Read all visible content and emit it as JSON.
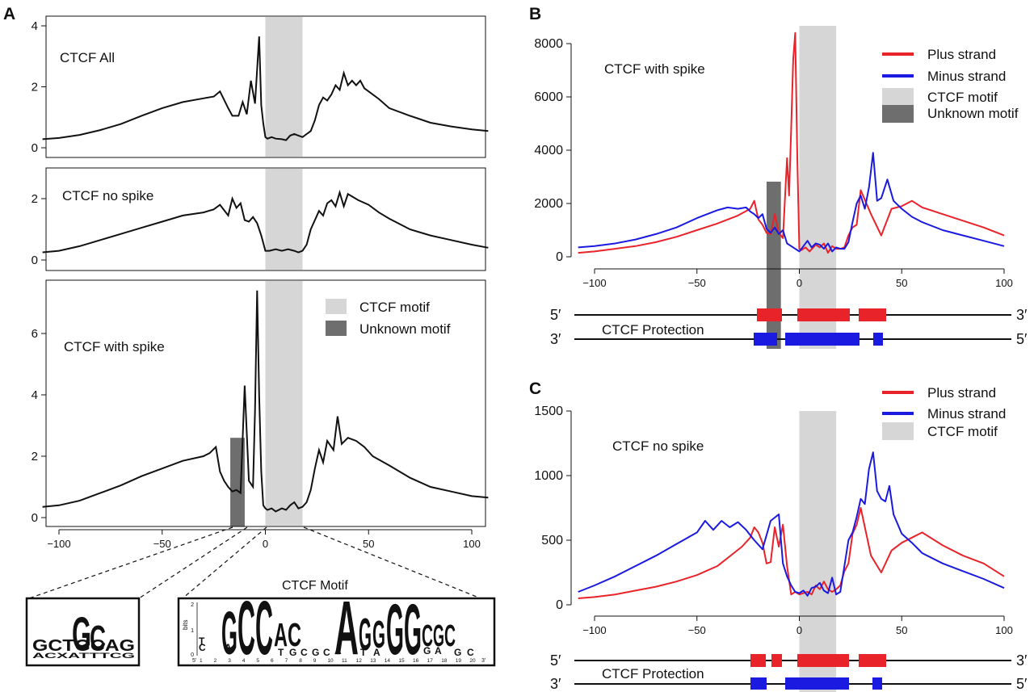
{
  "chart_data": [
    {
      "panel": "A",
      "type": "line",
      "title": "CTCF All",
      "xlim": [
        -108,
        108
      ],
      "ylim": [
        0,
        4
      ],
      "yticks": [
        0,
        2,
        4
      ],
      "series": [
        {
          "x": [
            -108,
            -100,
            -90,
            -80,
            -70,
            -60,
            -50,
            -40,
            -30,
            -25,
            -22,
            -18,
            -16,
            -13,
            -11,
            -9,
            -7,
            -5,
            -3,
            -2,
            -1,
            0,
            1,
            3,
            5,
            8,
            10,
            12,
            14,
            16,
            18,
            20,
            22,
            24,
            26,
            28,
            30,
            32,
            34,
            36,
            38,
            40,
            42,
            44,
            46,
            48,
            50,
            55,
            60,
            70,
            80,
            90,
            100,
            108
          ],
          "y": [
            0.28,
            0.32,
            0.42,
            0.58,
            0.78,
            1.05,
            1.3,
            1.5,
            1.62,
            1.68,
            1.85,
            1.3,
            1.05,
            1.05,
            1.5,
            1.1,
            2.2,
            1.45,
            3.65,
            1.4,
            0.8,
            0.35,
            0.3,
            0.35,
            0.3,
            0.28,
            0.25,
            0.4,
            0.45,
            0.4,
            0.35,
            0.45,
            0.55,
            0.9,
            1.4,
            1.65,
            1.55,
            1.75,
            2.05,
            1.9,
            2.45,
            2.05,
            2.2,
            2.05,
            2.2,
            1.95,
            1.85,
            1.6,
            1.3,
            1.05,
            0.82,
            0.7,
            0.6,
            0.55
          ]
        }
      ]
    },
    {
      "panel": "A",
      "type": "line",
      "title": "CTCF no spike",
      "xlim": [
        -108,
        108
      ],
      "ylim": [
        0,
        2.7
      ],
      "yticks": [
        0,
        2
      ],
      "series": [
        {
          "x": [
            -108,
            -100,
            -90,
            -80,
            -70,
            -60,
            -50,
            -40,
            -30,
            -25,
            -22,
            -18,
            -16,
            -14,
            -12,
            -10,
            -8,
            -6,
            -4,
            -2,
            0,
            2,
            5,
            8,
            11,
            14,
            16,
            18,
            20,
            22,
            24,
            26,
            28,
            30,
            32,
            34,
            36,
            38,
            40,
            45,
            50,
            55,
            60,
            70,
            80,
            90,
            100,
            108
          ],
          "y": [
            0.25,
            0.3,
            0.45,
            0.65,
            0.85,
            1.05,
            1.25,
            1.45,
            1.55,
            1.65,
            1.8,
            1.45,
            2.0,
            1.7,
            1.85,
            1.3,
            1.25,
            1.4,
            1.2,
            0.8,
            0.3,
            0.3,
            0.35,
            0.3,
            0.35,
            0.3,
            0.25,
            0.3,
            0.5,
            1.0,
            1.3,
            1.6,
            1.45,
            1.85,
            1.95,
            1.75,
            2.2,
            1.75,
            2.15,
            1.95,
            1.8,
            1.55,
            1.35,
            1.0,
            0.8,
            0.65,
            0.5,
            0.4
          ]
        }
      ]
    },
    {
      "panel": "A",
      "type": "line",
      "title": "CTCF with spike",
      "xlim": [
        -108,
        108
      ],
      "ylim": [
        -0.2,
        7.6
      ],
      "yticks": [
        0,
        2,
        4,
        6
      ],
      "xticks": [
        -100,
        -50,
        0,
        50,
        100
      ],
      "series": [
        {
          "x": [
            -108,
            -100,
            -90,
            -80,
            -70,
            -60,
            -50,
            -40,
            -30,
            -27,
            -24,
            -22,
            -20,
            -18,
            -16,
            -14,
            -12,
            -10,
            -8,
            -6,
            -5,
            -4,
            -3,
            -2,
            -1,
            0,
            1,
            3,
            5,
            8,
            10,
            12,
            14,
            16,
            18,
            20,
            22,
            24,
            26,
            28,
            30,
            33,
            35,
            37,
            40,
            44,
            48,
            52,
            60,
            70,
            80,
            90,
            100,
            108
          ],
          "y": [
            0.35,
            0.4,
            0.55,
            0.8,
            1.05,
            1.35,
            1.6,
            1.85,
            2.0,
            2.1,
            2.3,
            1.5,
            1.2,
            1.0,
            0.85,
            0.9,
            0.8,
            4.3,
            1.2,
            1.0,
            3.5,
            7.4,
            4.0,
            1.5,
            0.4,
            0.3,
            0.25,
            0.3,
            0.2,
            0.3,
            0.25,
            0.4,
            0.5,
            0.3,
            0.35,
            0.5,
            0.9,
            1.6,
            2.2,
            1.8,
            2.5,
            2.2,
            3.3,
            2.4,
            2.6,
            2.5,
            2.3,
            2.0,
            1.7,
            1.3,
            1.0,
            0.85,
            0.7,
            0.65
          ]
        }
      ]
    },
    {
      "panel": "B",
      "type": "line",
      "title": "CTCF with spike",
      "xlim": [
        -108,
        102
      ],
      "ylim": [
        0,
        8600
      ],
      "yticks": [
        0,
        2000,
        4000,
        6000,
        8000
      ],
      "xticks": [
        -100,
        -50,
        0,
        50,
        100
      ],
      "series": [
        {
          "name": "Plus strand",
          "color": "#e8232a",
          "x": [
            -108,
            -100,
            -90,
            -80,
            -70,
            -60,
            -50,
            -40,
            -30,
            -24,
            -22,
            -20,
            -18,
            -16,
            -14,
            -12,
            -10,
            -8,
            -6,
            -5,
            -4,
            -3,
            -2,
            -1,
            0,
            1,
            3,
            5,
            8,
            10,
            12,
            14,
            16,
            18,
            20,
            22,
            24,
            26,
            28,
            30,
            35,
            40,
            45,
            50,
            55,
            60,
            70,
            80,
            90,
            100
          ],
          "y": [
            150,
            200,
            300,
            400,
            550,
            750,
            1000,
            1250,
            1550,
            1800,
            2100,
            1400,
            1200,
            900,
            850,
            1600,
            900,
            700,
            3700,
            2300,
            4800,
            7400,
            8400,
            3700,
            300,
            250,
            350,
            200,
            450,
            350,
            500,
            150,
            400,
            300,
            300,
            350,
            800,
            1100,
            1200,
            2500,
            1600,
            800,
            1800,
            1900,
            2100,
            1850,
            1600,
            1350,
            1100,
            800
          ]
        },
        {
          "name": "Minus strand",
          "color": "#1a1ae0",
          "x": [
            -108,
            -100,
            -90,
            -80,
            -70,
            -60,
            -50,
            -45,
            -40,
            -35,
            -30,
            -26,
            -24,
            -22,
            -20,
            -18,
            -16,
            -14,
            -12,
            -10,
            -8,
            -6,
            -4,
            -2,
            0,
            2,
            4,
            6,
            8,
            10,
            12,
            14,
            16,
            18,
            20,
            22,
            24,
            26,
            28,
            30,
            32,
            34,
            36,
            38,
            40,
            43,
            46,
            50,
            55,
            60,
            70,
            80,
            90,
            100
          ],
          "y": [
            350,
            400,
            500,
            650,
            850,
            1100,
            1450,
            1600,
            1750,
            1850,
            1800,
            1850,
            1700,
            1600,
            1450,
            1600,
            1050,
            900,
            1100,
            850,
            1000,
            500,
            400,
            300,
            200,
            400,
            600,
            350,
            500,
            450,
            300,
            500,
            200,
            350,
            300,
            300,
            550,
            1300,
            2000,
            2300,
            1800,
            2600,
            3900,
            2100,
            2200,
            2900,
            2100,
            1800,
            1500,
            1300,
            1000,
            800,
            600,
            400
          ]
        }
      ]
    },
    {
      "panel": "C",
      "type": "line",
      "title": "CTCF no spike",
      "xlim": [
        -108,
        102
      ],
      "ylim": [
        0,
        1500
      ],
      "yticks": [
        0,
        500,
        1000,
        1500
      ],
      "xticks": [
        -100,
        -50,
        0,
        50,
        100
      ],
      "series": [
        {
          "name": "Plus strand",
          "color": "#e8232a",
          "x": [
            -108,
            -100,
            -90,
            -80,
            -70,
            -60,
            -50,
            -40,
            -32,
            -28,
            -24,
            -22,
            -20,
            -18,
            -16,
            -14,
            -12,
            -10,
            -8,
            -6,
            -4,
            -2,
            0,
            2,
            4,
            6,
            8,
            10,
            12,
            14,
            16,
            18,
            20,
            22,
            24,
            26,
            28,
            30,
            35,
            40,
            45,
            50,
            55,
            60,
            70,
            80,
            90,
            100
          ],
          "y": [
            50,
            60,
            80,
            110,
            140,
            180,
            230,
            300,
            400,
            450,
            520,
            600,
            560,
            480,
            320,
            330,
            600,
            450,
            620,
            300,
            80,
            100,
            80,
            90,
            100,
            80,
            150,
            120,
            180,
            120,
            100,
            120,
            150,
            260,
            320,
            550,
            620,
            750,
            380,
            250,
            420,
            480,
            520,
            560,
            460,
            380,
            320,
            220
          ]
        },
        {
          "name": "Minus strand",
          "color": "#1a1ae0",
          "x": [
            -108,
            -100,
            -90,
            -80,
            -70,
            -60,
            -50,
            -46,
            -42,
            -38,
            -34,
            -30,
            -26,
            -22,
            -18,
            -14,
            -10,
            -8,
            -6,
            -4,
            -2,
            0,
            2,
            4,
            6,
            8,
            10,
            12,
            14,
            16,
            18,
            20,
            22,
            24,
            26,
            28,
            30,
            32,
            34,
            36,
            38,
            40,
            42,
            44,
            46,
            50,
            55,
            60,
            70,
            80,
            90,
            100
          ],
          "y": [
            100,
            150,
            220,
            300,
            380,
            470,
            560,
            650,
            580,
            650,
            600,
            640,
            580,
            500,
            430,
            650,
            700,
            320,
            220,
            150,
            100,
            90,
            110,
            70,
            130,
            140,
            170,
            110,
            90,
            210,
            80,
            100,
            300,
            500,
            560,
            680,
            820,
            780,
            1050,
            1180,
            880,
            820,
            800,
            920,
            700,
            550,
            480,
            400,
            320,
            260,
            200,
            130
          ]
        }
      ]
    }
  ],
  "panelA": {
    "letter": "A",
    "legend": {
      "ctcf_motif": "CTCF motif",
      "unknown_motif": "Unknown motif"
    },
    "motif_title": "CTCF Motif",
    "logo_left": {
      "row1": "GCTGCAG",
      "row2": "ACXATTTCG"
    },
    "logo_right": {
      "bits_label": "bits",
      "y_ticks": [
        "2",
        "1",
        "0"
      ],
      "positions": [
        "1",
        "2",
        "3",
        "4",
        "5",
        "6",
        "7",
        "8",
        "9",
        "10",
        "11",
        "12",
        "13",
        "14",
        "15",
        "16",
        "17",
        "18",
        "19",
        "20"
      ],
      "end_5": "5'",
      "end_3": "3'",
      "big": [
        "G",
        "CC",
        "AC",
        "A",
        "G",
        "G",
        "G",
        "G",
        "C",
        "G",
        "C"
      ],
      "small": [
        "T",
        "C",
        "A",
        "T",
        "G",
        "C",
        "G",
        "C",
        "A",
        "T",
        "A",
        "G",
        "A",
        "G",
        "C"
      ]
    }
  },
  "panelB": {
    "letter": "B"
  },
  "panelC": {
    "letter": "C"
  },
  "legend": {
    "plus": "Plus strand",
    "minus": "Minus strand",
    "ctcf": "CTCF motif",
    "unknown": "Unknown motif"
  },
  "protection": {
    "label": "CTCF Protection",
    "five": "5′",
    "three": "3′"
  },
  "colors": {
    "plus": "#e8232a",
    "minus": "#1a1ae0",
    "ctcf_motif_band": "#d6d6d6",
    "unknown_motif_band": "#6e6e6e",
    "axis": "#111111"
  }
}
